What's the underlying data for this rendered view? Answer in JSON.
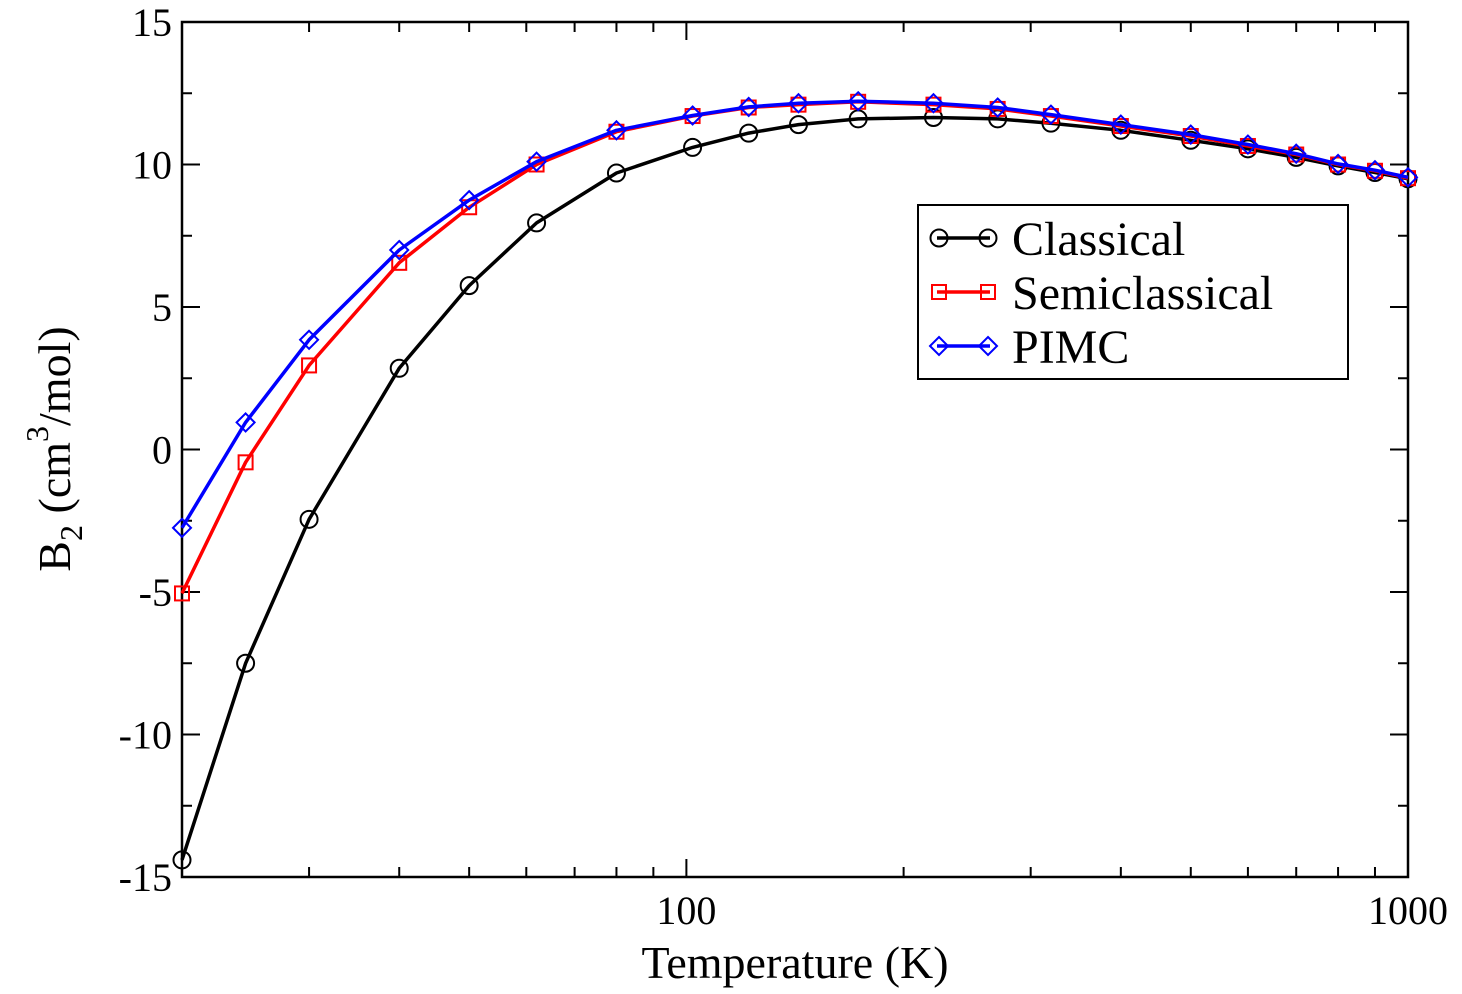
{
  "chart_data": {
    "type": "line",
    "title": "",
    "xlabel": "Temperature (K)",
    "ylabel": {
      "main": "B",
      "subscript": "2",
      "unit_prefix": " (cm",
      "superscript": "3",
      "unit_suffix": "/mol)"
    },
    "xscale": "log",
    "xlim": [
      20,
      1000
    ],
    "ylim": [
      -15,
      15
    ],
    "xticks": [
      {
        "value": 100,
        "label": "100"
      },
      {
        "value": 1000,
        "label": "1000"
      }
    ],
    "yticks": [
      {
        "value": -15,
        "label": "-15"
      },
      {
        "value": -10,
        "label": "-10"
      },
      {
        "value": -5,
        "label": "-5"
      },
      {
        "value": 0,
        "label": "0"
      },
      {
        "value": 5,
        "label": "5"
      },
      {
        "value": 10,
        "label": "10"
      },
      {
        "value": 15,
        "label": "15"
      }
    ],
    "grid": false,
    "legend": "top-right",
    "x": [
      20,
      24.5,
      30,
      40,
      50,
      62,
      80,
      102,
      122,
      143,
      173,
      220,
      270,
      320,
      400,
      500,
      600,
      700,
      800,
      900,
      1000
    ],
    "series": [
      {
        "name": "Classical",
        "color": "#000000",
        "marker": "circle",
        "values": [
          -14.4,
          -7.5,
          -2.45,
          2.85,
          5.75,
          7.95,
          9.7,
          10.6,
          11.1,
          11.4,
          11.6,
          11.65,
          11.6,
          11.45,
          11.2,
          10.85,
          10.55,
          10.25,
          9.95,
          9.72,
          9.5
        ]
      },
      {
        "name": "Semiclassical",
        "color": "#ff0000",
        "marker": "square",
        "values": [
          -5.05,
          -0.45,
          2.95,
          6.55,
          8.5,
          10.0,
          11.15,
          11.7,
          12.0,
          12.1,
          12.2,
          12.1,
          11.95,
          11.7,
          11.35,
          11.0,
          10.65,
          10.35,
          10.0,
          9.78,
          9.52
        ]
      },
      {
        "name": "PIMC",
        "color": "#0000ff",
        "marker": "diamond",
        "values": [
          -2.75,
          0.95,
          3.85,
          7.0,
          8.75,
          10.1,
          11.2,
          11.72,
          12.02,
          12.15,
          12.22,
          12.15,
          12.0,
          11.75,
          11.4,
          11.05,
          10.7,
          10.38,
          10.02,
          9.8,
          9.55
        ]
      }
    ]
  }
}
